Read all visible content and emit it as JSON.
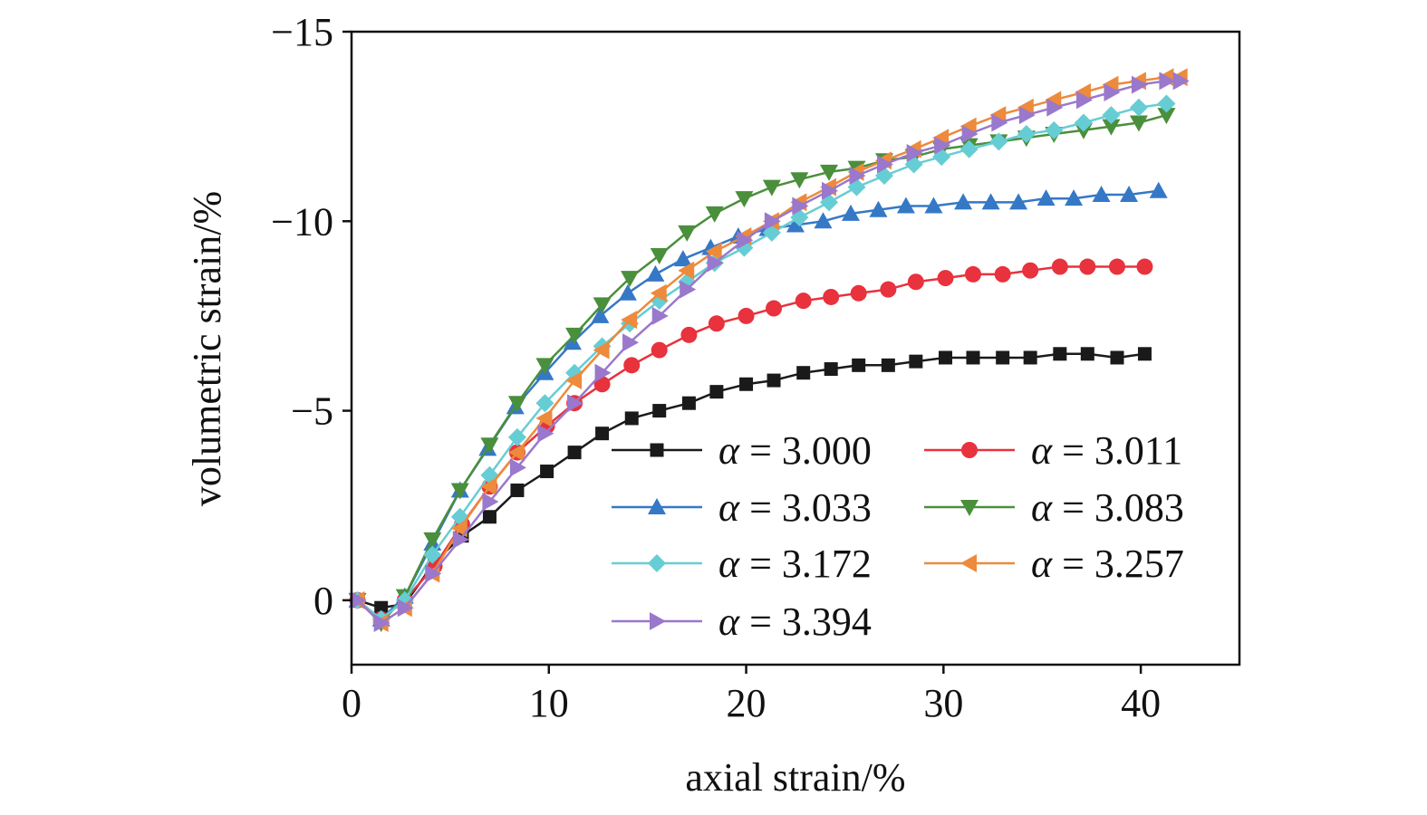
{
  "chart_data": {
    "type": "line",
    "title": "",
    "xlabel": "axial strain/%",
    "ylabel": "volumetric strain/%",
    "xlim": [
      0,
      45
    ],
    "ylim": [
      1.7,
      -15
    ],
    "y_axis_inverted": true,
    "grid": false,
    "legend_placement": "lower-right inside plot, two columns",
    "xticks": [
      {
        "value": 0,
        "label": "0"
      },
      {
        "value": 10,
        "label": "10"
      },
      {
        "value": 20,
        "label": "20"
      },
      {
        "value": 30,
        "label": "30"
      },
      {
        "value": 40,
        "label": "40"
      }
    ],
    "yticks": [
      {
        "value": -15,
        "label": "−15"
      },
      {
        "value": -10,
        "label": "−10"
      },
      {
        "value": -5,
        "label": "−5"
      },
      {
        "value": 0,
        "label": "0"
      }
    ],
    "legend_prefix": "α",
    "series": [
      {
        "name": "= 3.000",
        "color": "#1a1a1a",
        "marker": "square",
        "x": [
          0.3,
          1.5,
          2.7,
          4.2,
          5.6,
          7.0,
          8.4,
          9.9,
          11.3,
          12.7,
          14.2,
          15.6,
          17.1,
          18.5,
          20.0,
          21.4,
          22.9,
          24.3,
          25.7,
          27.2,
          28.6,
          30.1,
          31.5,
          33.0,
          34.4,
          35.9,
          37.3,
          38.8,
          40.2
        ],
        "y": [
          0.0,
          0.2,
          0.1,
          -1.0,
          -1.7,
          -2.2,
          -2.9,
          -3.4,
          -3.9,
          -4.4,
          -4.8,
          -5.0,
          -5.2,
          -5.5,
          -5.7,
          -5.8,
          -6.0,
          -6.1,
          -6.2,
          -6.2,
          -6.3,
          -6.4,
          -6.4,
          -6.4,
          -6.4,
          -6.5,
          -6.5,
          -6.4,
          -6.5
        ]
      },
      {
        "name": "= 3.011",
        "color": "#e8323d",
        "marker": "circle",
        "x": [
          0.3,
          1.5,
          2.7,
          4.2,
          5.6,
          7.0,
          8.4,
          9.9,
          11.3,
          12.7,
          14.2,
          15.6,
          17.1,
          18.5,
          20.0,
          21.4,
          22.9,
          24.3,
          25.7,
          27.2,
          28.6,
          30.1,
          31.5,
          33.0,
          34.4,
          35.9,
          37.3,
          38.8,
          40.2
        ],
        "y": [
          0.0,
          0.5,
          0.0,
          -0.9,
          -2.0,
          -3.0,
          -3.9,
          -4.6,
          -5.2,
          -5.7,
          -6.2,
          -6.6,
          -7.0,
          -7.3,
          -7.5,
          -7.7,
          -7.9,
          -8.0,
          -8.1,
          -8.2,
          -8.4,
          -8.5,
          -8.6,
          -8.6,
          -8.7,
          -8.8,
          -8.8,
          -8.8,
          -8.8
        ]
      },
      {
        "name": "= 3.033",
        "color": "#3578c6",
        "marker": "triangle-up",
        "x": [
          0.3,
          1.5,
          2.7,
          4.1,
          5.5,
          6.9,
          8.3,
          9.8,
          11.2,
          12.6,
          14.0,
          15.4,
          16.8,
          18.2,
          19.6,
          21.1,
          22.5,
          23.9,
          25.3,
          26.7,
          28.1,
          29.5,
          31.0,
          32.4,
          33.8,
          35.2,
          36.6,
          38.0,
          39.4,
          40.9
        ],
        "y": [
          0.0,
          0.5,
          -0.1,
          -1.5,
          -2.9,
          -4.0,
          -5.1,
          -6.0,
          -6.8,
          -7.5,
          -8.1,
          -8.6,
          -9.0,
          -9.3,
          -9.6,
          -9.8,
          -9.9,
          -10.0,
          -10.2,
          -10.3,
          -10.4,
          -10.4,
          -10.5,
          -10.5,
          -10.5,
          -10.6,
          -10.6,
          -10.7,
          -10.7,
          -10.8
        ]
      },
      {
        "name": "= 3.083",
        "color": "#4a8f3c",
        "marker": "triangle-down",
        "x": [
          0.3,
          1.5,
          2.7,
          4.1,
          5.5,
          7.0,
          8.4,
          9.8,
          11.3,
          12.7,
          14.1,
          15.6,
          17.0,
          18.4,
          19.9,
          21.3,
          22.7,
          24.2,
          25.6,
          27.0,
          28.5,
          29.9,
          31.3,
          32.8,
          34.2,
          35.6,
          37.1,
          38.5,
          39.9,
          41.3
        ],
        "y": [
          0.0,
          0.6,
          -0.1,
          -1.6,
          -2.9,
          -4.1,
          -5.2,
          -6.2,
          -7.0,
          -7.8,
          -8.5,
          -9.1,
          -9.7,
          -10.2,
          -10.6,
          -10.9,
          -11.1,
          -11.3,
          -11.4,
          -11.6,
          -11.7,
          -11.9,
          -12.0,
          -12.1,
          -12.2,
          -12.3,
          -12.4,
          -12.5,
          -12.6,
          -12.8
        ]
      },
      {
        "name": "= 3.172",
        "color": "#67cdd4",
        "marker": "diamond",
        "x": [
          0.3,
          1.5,
          2.7,
          4.1,
          5.5,
          7.0,
          8.4,
          9.8,
          11.3,
          12.7,
          14.1,
          15.6,
          17.0,
          18.4,
          19.9,
          21.3,
          22.7,
          24.2,
          25.6,
          27.0,
          28.5,
          29.9,
          31.3,
          32.8,
          34.2,
          35.6,
          37.1,
          38.5,
          39.9,
          41.3
        ],
        "y": [
          0.0,
          0.5,
          0.0,
          -1.2,
          -2.2,
          -3.3,
          -4.3,
          -5.2,
          -6.0,
          -6.7,
          -7.3,
          -7.9,
          -8.4,
          -8.9,
          -9.3,
          -9.7,
          -10.1,
          -10.5,
          -10.9,
          -11.2,
          -11.5,
          -11.7,
          -11.9,
          -12.1,
          -12.3,
          -12.4,
          -12.6,
          -12.8,
          -13.0,
          -13.1
        ]
      },
      {
        "name": "= 3.257",
        "color": "#ed8a3c",
        "marker": "triangle-left",
        "x": [
          0.3,
          1.5,
          2.7,
          4.1,
          5.5,
          7.0,
          8.4,
          9.8,
          11.3,
          12.7,
          14.1,
          15.6,
          17.0,
          18.4,
          19.9,
          21.3,
          22.7,
          24.2,
          25.6,
          27.0,
          28.5,
          29.9,
          31.3,
          32.8,
          34.2,
          35.6,
          37.1,
          38.5,
          39.9,
          41.3,
          42.0
        ],
        "y": [
          0.0,
          0.6,
          0.2,
          -0.7,
          -1.9,
          -3.0,
          -3.9,
          -4.8,
          -5.8,
          -6.6,
          -7.4,
          -8.1,
          -8.7,
          -9.2,
          -9.6,
          -10.0,
          -10.5,
          -10.9,
          -11.3,
          -11.6,
          -11.9,
          -12.2,
          -12.5,
          -12.8,
          -13.0,
          -13.2,
          -13.4,
          -13.6,
          -13.7,
          -13.8,
          -13.8
        ]
      },
      {
        "name": "= 3.394",
        "color": "#9a78cc",
        "marker": "triangle-right",
        "x": [
          0.3,
          1.5,
          2.7,
          4.1,
          5.5,
          7.0,
          8.4,
          9.8,
          11.3,
          12.7,
          14.1,
          15.6,
          17.0,
          18.4,
          19.9,
          21.3,
          22.7,
          24.2,
          25.6,
          27.0,
          28.5,
          29.9,
          31.3,
          32.8,
          34.2,
          35.6,
          37.1,
          38.5,
          39.9,
          41.3,
          42.0
        ],
        "y": [
          0.0,
          0.6,
          0.2,
          -0.7,
          -1.6,
          -2.6,
          -3.5,
          -4.4,
          -5.2,
          -6.0,
          -6.8,
          -7.5,
          -8.2,
          -8.9,
          -9.5,
          -10.0,
          -10.4,
          -10.8,
          -11.2,
          -11.5,
          -11.8,
          -12.0,
          -12.3,
          -12.6,
          -12.8,
          -13.0,
          -13.2,
          -13.4,
          -13.6,
          -13.7,
          -13.7
        ]
      }
    ]
  }
}
